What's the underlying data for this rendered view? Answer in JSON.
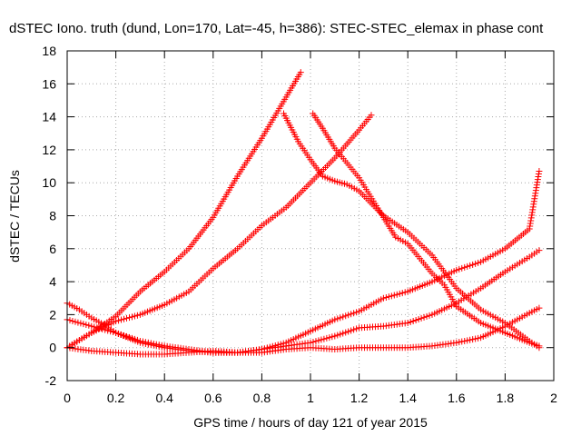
{
  "chart_data": {
    "type": "scatter",
    "title": "dSTEC Iono. truth (dund, Lon=170, Lat=-45, h=386): STEC-STEC_elemax in phase cont",
    "xlabel": "GPS time / hours of day 121 of year 2015",
    "ylabel": "dSTEC  / TECUs",
    "xlim": [
      0,
      2
    ],
    "ylim": [
      -2,
      18
    ],
    "x_ticks": [
      0,
      0.2,
      0.4,
      0.6,
      0.8,
      1,
      1.2,
      1.4,
      1.6,
      1.8,
      2
    ],
    "x_tick_labels": [
      "0",
      "0.2",
      "0.4",
      "0.6",
      "0.8",
      "1",
      "1.2",
      "1.4",
      "1.6",
      "1.8",
      "2"
    ],
    "y_ticks": [
      -2,
      0,
      2,
      4,
      6,
      8,
      10,
      12,
      14,
      16,
      18
    ],
    "y_tick_labels": [
      "-2",
      "0",
      "2",
      "4",
      "6",
      "8",
      "10",
      "12",
      "14",
      "16",
      "18"
    ],
    "grid": true,
    "marker": "+",
    "marker_color": "#ff0000",
    "series": [
      {
        "points": [
          [
            0.0,
            0.0
          ],
          [
            0.1,
            0.9
          ],
          [
            0.2,
            1.9
          ],
          [
            0.3,
            3.4
          ],
          [
            0.4,
            4.6
          ],
          [
            0.5,
            6.0
          ],
          [
            0.6,
            7.9
          ],
          [
            0.7,
            10.4
          ],
          [
            0.8,
            12.7
          ],
          [
            0.9,
            15.2
          ],
          [
            0.96,
            16.7
          ]
        ]
      },
      {
        "points": [
          [
            0.0,
            0.0
          ],
          [
            0.1,
            0.9
          ],
          [
            0.2,
            1.6
          ],
          [
            0.3,
            2.0
          ],
          [
            0.4,
            2.6
          ],
          [
            0.5,
            3.4
          ],
          [
            0.6,
            4.8
          ],
          [
            0.7,
            6.0
          ],
          [
            0.8,
            7.4
          ],
          [
            0.9,
            8.5
          ],
          [
            1.0,
            10.0
          ],
          [
            1.1,
            11.5
          ],
          [
            1.2,
            13.2
          ],
          [
            1.25,
            14.1
          ]
        ]
      },
      {
        "points": [
          [
            0.89,
            14.2
          ],
          [
            0.95,
            12.5
          ],
          [
            1.0,
            11.4
          ],
          [
            1.05,
            10.4
          ],
          [
            1.1,
            10.1
          ],
          [
            1.15,
            9.9
          ],
          [
            1.2,
            9.5
          ],
          [
            1.3,
            8.0
          ],
          [
            1.4,
            7.0
          ],
          [
            1.5,
            5.6
          ],
          [
            1.6,
            3.6
          ],
          [
            1.7,
            2.3
          ],
          [
            1.8,
            1.5
          ],
          [
            1.9,
            0.4
          ],
          [
            1.94,
            0.0
          ]
        ]
      },
      {
        "points": [
          [
            1.01,
            14.2
          ],
          [
            1.05,
            13.3
          ],
          [
            1.1,
            12.1
          ],
          [
            1.2,
            10.3
          ],
          [
            1.3,
            7.9
          ],
          [
            1.35,
            6.7
          ],
          [
            1.4,
            6.3
          ],
          [
            1.5,
            4.5
          ],
          [
            1.55,
            3.8
          ],
          [
            1.6,
            2.5
          ],
          [
            1.7,
            1.5
          ],
          [
            1.8,
            0.9
          ],
          [
            1.9,
            0.3
          ],
          [
            1.94,
            0.1
          ]
        ]
      },
      {
        "points": [
          [
            0.0,
            2.7
          ],
          [
            0.05,
            2.3
          ],
          [
            0.1,
            1.8
          ],
          [
            0.15,
            1.4
          ],
          [
            0.2,
            0.9
          ],
          [
            0.3,
            0.3
          ],
          [
            0.4,
            0.0
          ],
          [
            0.5,
            -0.2
          ],
          [
            0.6,
            -0.3
          ],
          [
            0.7,
            -0.3
          ],
          [
            0.8,
            -0.1
          ],
          [
            0.9,
            0.3
          ],
          [
            1.0,
            1.0
          ],
          [
            1.1,
            1.7
          ],
          [
            1.2,
            2.2
          ],
          [
            1.3,
            3.0
          ],
          [
            1.4,
            3.4
          ],
          [
            1.5,
            4.0
          ],
          [
            1.6,
            4.7
          ],
          [
            1.7,
            5.2
          ],
          [
            1.8,
            6.0
          ],
          [
            1.9,
            7.2
          ],
          [
            1.94,
            10.7
          ]
        ]
      },
      {
        "points": [
          [
            0.0,
            1.7
          ],
          [
            0.1,
            1.3
          ],
          [
            0.2,
            0.9
          ],
          [
            0.3,
            0.4
          ],
          [
            0.4,
            0.1
          ],
          [
            0.5,
            -0.1
          ],
          [
            0.6,
            -0.3
          ],
          [
            0.7,
            -0.3
          ],
          [
            0.8,
            -0.1
          ],
          [
            0.9,
            0.1
          ],
          [
            1.0,
            0.3
          ],
          [
            1.1,
            0.7
          ],
          [
            1.2,
            1.2
          ],
          [
            1.3,
            1.3
          ],
          [
            1.4,
            1.5
          ],
          [
            1.5,
            2.0
          ],
          [
            1.6,
            2.7
          ],
          [
            1.7,
            3.6
          ],
          [
            1.8,
            4.6
          ],
          [
            1.9,
            5.5
          ],
          [
            1.94,
            5.9
          ]
        ]
      },
      {
        "points": [
          [
            0.0,
            0.0
          ],
          [
            0.1,
            -0.2
          ],
          [
            0.2,
            -0.3
          ],
          [
            0.3,
            -0.4
          ],
          [
            0.4,
            -0.4
          ],
          [
            0.5,
            -0.3
          ],
          [
            0.6,
            -0.2
          ],
          [
            0.7,
            -0.3
          ],
          [
            0.8,
            -0.3
          ],
          [
            0.9,
            -0.1
          ],
          [
            1.0,
            0.0
          ],
          [
            1.1,
            -0.1
          ],
          [
            1.2,
            0.0
          ],
          [
            1.3,
            0.0
          ],
          [
            1.4,
            0.0
          ],
          [
            1.5,
            0.1
          ],
          [
            1.6,
            0.3
          ],
          [
            1.7,
            0.6
          ],
          [
            1.8,
            1.3
          ],
          [
            1.9,
            2.1
          ],
          [
            1.94,
            2.4
          ]
        ]
      }
    ]
  }
}
